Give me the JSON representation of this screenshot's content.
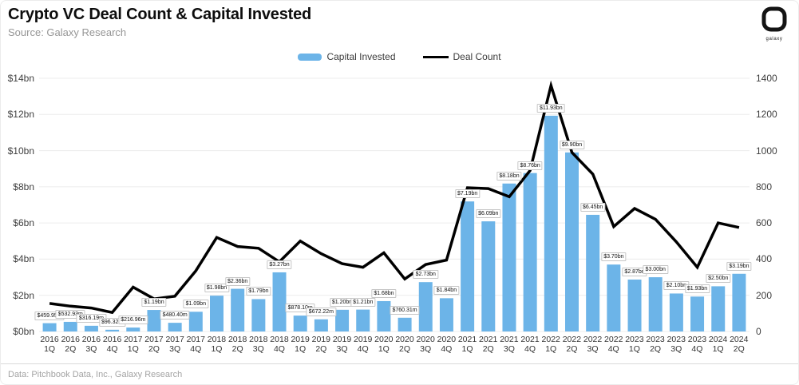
{
  "header": {
    "title": "Crypto VC Deal Count & Capital Invested",
    "subtitle": "Source: Galaxy Research",
    "logo_text": "galaxy"
  },
  "footer": {
    "text": "Data: Pitchbook Data, Inc., Galaxy Research"
  },
  "colors": {
    "bar": "#6cb4e8",
    "line": "#000000",
    "grid": "#ececec",
    "label_border": "#c6c6c6"
  },
  "chart_data": {
    "type": "bar",
    "title": "Crypto VC Deal Count & Capital Invested",
    "categories": [
      "2016 1Q",
      "2016 2Q",
      "2016 3Q",
      "2016 4Q",
      "2017 1Q",
      "2017 2Q",
      "2017 3Q",
      "2017 4Q",
      "2018 1Q",
      "2018 2Q",
      "2018 3Q",
      "2018 4Q",
      "2019 1Q",
      "2019 2Q",
      "2019 3Q",
      "2019 4Q",
      "2020 1Q",
      "2020 2Q",
      "2020 3Q",
      "2020 4Q",
      "2021 1Q",
      "2021 2Q",
      "2021 3Q",
      "2021 4Q",
      "2022 1Q",
      "2022 2Q",
      "2022 3Q",
      "2022 4Q",
      "2023 1Q",
      "2023 2Q",
      "2023 3Q",
      "2023 4Q",
      "2024 1Q",
      "2024 2Q"
    ],
    "series": [
      {
        "name": "Capital Invested",
        "type": "bar",
        "axis": "left",
        "unit": "USD bn",
        "values": [
          0.46,
          0.533,
          0.316,
          0.096,
          0.217,
          1.19,
          0.48,
          1.09,
          1.98,
          2.36,
          1.79,
          3.27,
          0.878,
          0.672,
          1.2,
          1.21,
          1.68,
          0.76,
          2.73,
          1.84,
          7.19,
          6.09,
          8.18,
          8.76,
          11.93,
          9.9,
          6.45,
          3.7,
          2.87,
          3.0,
          2.1,
          1.93,
          2.5,
          3.19
        ],
        "labels": [
          "$459.95m",
          "$532.93m",
          "$316.19m",
          "$96.32m",
          "$216.96m",
          "$1.19bn",
          "$480.40m",
          "$1.09bn",
          "$1.98bn",
          "$2.36bn",
          "$1.79bn",
          "$3.27bn",
          "$878.10m",
          "$672.22m",
          "$1.20bn",
          "$1.21bn",
          "$1.68bn",
          "$760.31m",
          "$2.73bn",
          "$1.84bn",
          "$7.19bn",
          "$6.09bn",
          "$8.18bn",
          "$8.76bn",
          "$11.93bn",
          "$9.90bn",
          "$6.45bn",
          "$3.70bn",
          "$2.87bn",
          "$3.00bn",
          "$2.10bn",
          "$1.93bn",
          "$2.50bn",
          "$3.19bn"
        ]
      },
      {
        "name": "Deal Count",
        "type": "line",
        "axis": "right",
        "values": [
          155,
          140,
          130,
          105,
          245,
          180,
          195,
          335,
          520,
          470,
          460,
          385,
          500,
          430,
          375,
          355,
          435,
          290,
          370,
          395,
          795,
          790,
          745,
          890,
          1360,
          990,
          870,
          580,
          680,
          620,
          495,
          355,
          600,
          575
        ]
      }
    ],
    "left_axis": {
      "ticks": [
        "$0bn",
        "$2bn",
        "$4bn",
        "$6bn",
        "$8bn",
        "$10bn",
        "$12bn",
        "$14bn"
      ],
      "min": 0,
      "max": 14
    },
    "right_axis": {
      "ticks": [
        "0",
        "200",
        "400",
        "600",
        "800",
        "1000",
        "1200",
        "1400"
      ],
      "min": 0,
      "max": 1400
    },
    "grid": "horizontal",
    "legend_position": "top-center"
  }
}
